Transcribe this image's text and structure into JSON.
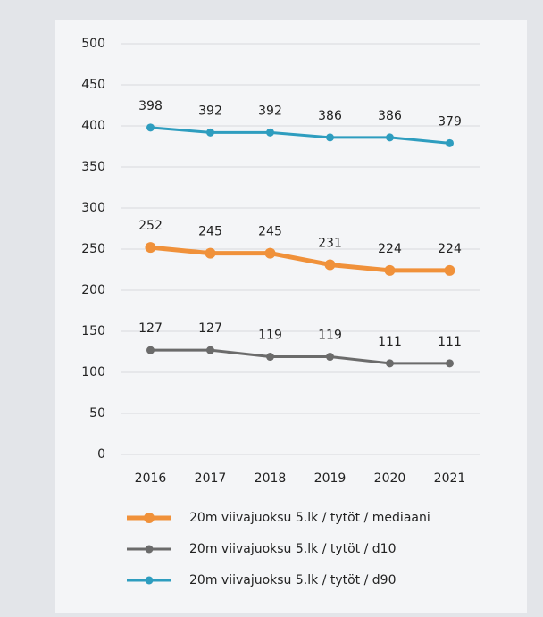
{
  "chart_data": {
    "type": "line",
    "categories": [
      "2016",
      "2017",
      "2018",
      "2019",
      "2020",
      "2021"
    ],
    "series": [
      {
        "name": "20m viivajuoksu 5.lk / tytöt / mediaani",
        "color": "#f0913a",
        "values": [
          252,
          245,
          245,
          231,
          224,
          224
        ]
      },
      {
        "name": "20m viivajuoksu 5.lk / tytöt / d10",
        "color": "#6b6b6b",
        "values": [
          127,
          127,
          119,
          119,
          111,
          111
        ]
      },
      {
        "name": "20m viivajuoksu 5.lk / tytöt / d90",
        "color": "#2e9dbf",
        "values": [
          398,
          392,
          392,
          386,
          386,
          379
        ]
      }
    ],
    "ylim": [
      0,
      500
    ],
    "yticks": [
      0,
      50,
      100,
      150,
      200,
      250,
      300,
      350,
      400,
      450,
      500
    ],
    "grid": true,
    "legend": "bottom"
  }
}
